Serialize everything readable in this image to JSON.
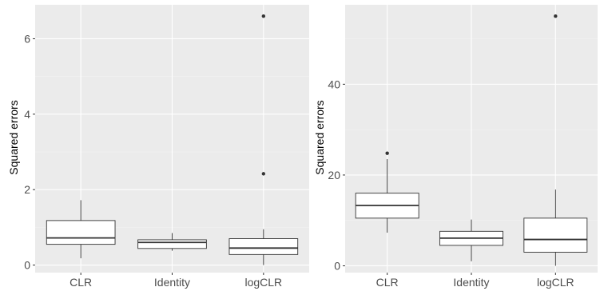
{
  "colors": {
    "panel": "#ebebeb",
    "grid_major": "#ffffff",
    "grid_minor": "#f3f3f3",
    "box_fill": "#ffffff",
    "box_line": "#333333",
    "tick_label": "#4d4d4d"
  },
  "chart_data": [
    {
      "type": "boxplot",
      "title": "",
      "xlabel": "",
      "ylabel": "Squared errors",
      "categories": [
        "CLR",
        "Identity",
        "logCLR"
      ],
      "ylim": [
        -0.2,
        6.9
      ],
      "yticks": [
        0,
        2,
        4,
        6
      ],
      "grid": true,
      "boxes": [
        {
          "category": "CLR",
          "whisker_low": 0.18,
          "q1": 0.55,
          "median": 0.72,
          "q3": 1.18,
          "whisker_high": 1.72,
          "outliers": []
        },
        {
          "category": "Identity",
          "whisker_low": 0.38,
          "q1": 0.44,
          "median": 0.6,
          "q3": 0.67,
          "whisker_high": 0.85,
          "outliers": []
        },
        {
          "category": "logCLR",
          "whisker_low": 0.0,
          "q1": 0.28,
          "median": 0.45,
          "q3": 0.7,
          "whisker_high": 0.95,
          "outliers": [
            2.42,
            6.6
          ]
        }
      ]
    },
    {
      "type": "boxplot",
      "title": "",
      "xlabel": "",
      "ylabel": "Squared errors",
      "categories": [
        "CLR",
        "Identity",
        "logCLR"
      ],
      "ylim": [
        -1.5,
        57.5
      ],
      "yticks": [
        0,
        20,
        40
      ],
      "grid": true,
      "boxes": [
        {
          "category": "CLR",
          "whisker_low": 7.3,
          "q1": 10.5,
          "median": 13.3,
          "q3": 16.0,
          "whisker_high": 23.5,
          "outliers": [
            24.8
          ]
        },
        {
          "category": "Identity",
          "whisker_low": 1.0,
          "q1": 4.5,
          "median": 6.1,
          "q3": 7.6,
          "whisker_high": 10.2,
          "outliers": []
        },
        {
          "category": "logCLR",
          "whisker_low": 0.0,
          "q1": 3.0,
          "median": 5.8,
          "q3": 10.5,
          "whisker_high": 16.8,
          "outliers": [
            55.0
          ]
        }
      ]
    }
  ]
}
